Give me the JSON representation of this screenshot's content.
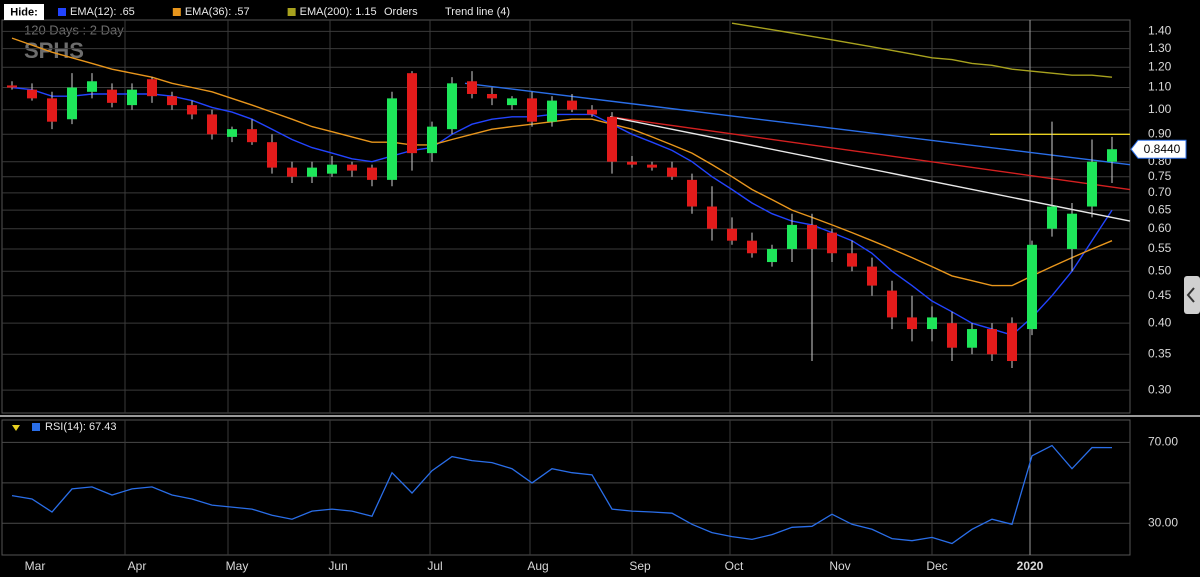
{
  "toolbar": {
    "hide": "Hide:",
    "orders": "Orders",
    "trend": "Trend line (4)"
  },
  "chart_data": [
    {
      "type": "candlestick",
      "symbol": "SPHS",
      "period": "120  Days : 2 Day",
      "log_scale": true,
      "grid": true,
      "xlim": [
        -0.5,
        55.9
      ],
      "xgrid": [
        5.65,
        10.8,
        15.9,
        20.9,
        25.9,
        31.0,
        35.9,
        41.0,
        46.0,
        50.9
      ],
      "ylim": [
        0.272,
        1.47
      ],
      "yticks": [
        {
          "value": 0.3,
          "label": "0.30"
        },
        {
          "value": 0.35,
          "label": "0.35"
        },
        {
          "value": 0.4,
          "label": "0.40"
        },
        {
          "value": 0.45,
          "label": "0.45"
        },
        {
          "value": 0.5,
          "label": "0.50"
        },
        {
          "value": 0.55,
          "label": "0.55"
        },
        {
          "value": 0.6,
          "label": "0.60"
        },
        {
          "value": 0.65,
          "label": "0.65"
        },
        {
          "value": 0.7,
          "label": "0.70"
        },
        {
          "value": 0.75,
          "label": "0.75"
        },
        {
          "value": 0.8,
          "label": "0.80"
        },
        {
          "value": 0.9,
          "label": "0.90"
        },
        {
          "value": 1.0,
          "label": "1.00"
        },
        {
          "value": 1.1,
          "label": "1.10"
        },
        {
          "value": 1.2,
          "label": "1.20"
        },
        {
          "value": 1.3,
          "label": "1.30"
        },
        {
          "value": 1.4,
          "label": "1.40"
        }
      ],
      "up_color": "#1ee65a",
      "down_color": "#e21b1b",
      "open": [
        1.11,
        1.09,
        1.05,
        0.96,
        1.08,
        1.09,
        1.02,
        1.14,
        1.06,
        1.02,
        0.98,
        0.89,
        0.92,
        0.87,
        0.78,
        0.75,
        0.76,
        0.79,
        0.78,
        0.74,
        1.17,
        0.83,
        0.92,
        1.13,
        1.07,
        1.02,
        1.05,
        0.95,
        1.04,
        1.0,
        0.97,
        0.8,
        0.79,
        0.78,
        0.74,
        0.66,
        0.6,
        0.57,
        0.52,
        0.55,
        0.61,
        0.59,
        0.54,
        0.51,
        0.46,
        0.41,
        0.39,
        0.4,
        0.36,
        0.39,
        0.4,
        0.39,
        0.6,
        0.55,
        0.66,
        0.8
      ],
      "high": [
        1.13,
        1.12,
        1.08,
        1.17,
        1.17,
        1.12,
        1.12,
        1.15,
        1.08,
        1.04,
        1.0,
        0.93,
        0.96,
        0.9,
        0.8,
        0.8,
        0.82,
        0.8,
        0.79,
        1.08,
        1.18,
        0.95,
        1.15,
        1.18,
        1.1,
        1.06,
        1.08,
        1.06,
        1.07,
        1.02,
        0.99,
        0.82,
        0.8,
        0.8,
        0.76,
        0.72,
        0.63,
        0.59,
        0.56,
        0.64,
        0.64,
        0.6,
        0.57,
        0.53,
        0.48,
        0.45,
        0.43,
        0.42,
        0.4,
        0.4,
        0.41,
        0.57,
        0.95,
        0.67,
        0.88,
        0.89
      ],
      "low": [
        1.09,
        1.04,
        0.92,
        0.94,
        1.05,
        1.01,
        1.0,
        1.03,
        1.0,
        0.96,
        0.88,
        0.87,
        0.86,
        0.76,
        0.73,
        0.73,
        0.75,
        0.75,
        0.72,
        0.72,
        0.77,
        0.8,
        0.9,
        1.05,
        1.02,
        1.0,
        0.93,
        0.93,
        0.99,
        0.97,
        0.76,
        0.78,
        0.77,
        0.74,
        0.64,
        0.57,
        0.56,
        0.53,
        0.51,
        0.52,
        0.34,
        0.52,
        0.5,
        0.45,
        0.39,
        0.37,
        0.37,
        0.34,
        0.35,
        0.34,
        0.33,
        0.38,
        0.58,
        0.5,
        0.63,
        0.73
      ],
      "close": [
        1.1,
        1.05,
        0.95,
        1.1,
        1.13,
        1.03,
        1.09,
        1.06,
        1.02,
        0.98,
        0.9,
        0.92,
        0.87,
        0.78,
        0.75,
        0.78,
        0.79,
        0.77,
        0.74,
        1.05,
        0.83,
        0.93,
        1.12,
        1.07,
        1.05,
        1.05,
        0.95,
        1.04,
        1.0,
        0.98,
        0.8,
        0.79,
        0.78,
        0.75,
        0.66,
        0.6,
        0.57,
        0.54,
        0.55,
        0.61,
        0.55,
        0.54,
        0.51,
        0.47,
        0.41,
        0.39,
        0.41,
        0.36,
        0.39,
        0.35,
        0.34,
        0.56,
        0.66,
        0.64,
        0.8,
        0.844
      ],
      "last_label": "0.8440",
      "series": [
        {
          "name": "EMA(12): .65",
          "color": "#2244ff",
          "values": [
            1.1,
            1.09,
            1.06,
            1.06,
            1.07,
            1.07,
            1.07,
            1.07,
            1.06,
            1.04,
            1.01,
            0.99,
            0.96,
            0.92,
            0.88,
            0.85,
            0.83,
            0.81,
            0.8,
            0.82,
            0.84,
            0.85,
            0.9,
            0.94,
            0.96,
            0.97,
            0.97,
            0.98,
            0.98,
            0.98,
            0.94,
            0.9,
            0.87,
            0.84,
            0.8,
            0.75,
            0.71,
            0.67,
            0.64,
            0.62,
            0.61,
            0.59,
            0.57,
            0.54,
            0.5,
            0.47,
            0.44,
            0.42,
            0.4,
            0.39,
            0.38,
            0.41,
            0.45,
            0.5,
            0.57,
            0.65
          ]
        },
        {
          "name": "EMA(36): .57",
          "color": "#e8961c",
          "values": [
            1.36,
            1.32,
            1.28,
            1.25,
            1.22,
            1.19,
            1.17,
            1.15,
            1.12,
            1.1,
            1.08,
            1.05,
            1.02,
            0.99,
            0.96,
            0.93,
            0.91,
            0.89,
            0.87,
            0.87,
            0.86,
            0.86,
            0.88,
            0.9,
            0.92,
            0.93,
            0.94,
            0.95,
            0.96,
            0.96,
            0.94,
            0.92,
            0.89,
            0.86,
            0.83,
            0.79,
            0.75,
            0.71,
            0.68,
            0.65,
            0.63,
            0.61,
            0.59,
            0.57,
            0.55,
            0.53,
            0.51,
            0.49,
            0.48,
            0.47,
            0.47,
            0.49,
            0.51,
            0.53,
            0.55,
            0.57
          ]
        },
        {
          "name": "EMA(200): 1.15",
          "color": "#a8a21e",
          "values": [
            null,
            null,
            null,
            null,
            null,
            null,
            null,
            null,
            null,
            null,
            null,
            null,
            null,
            null,
            null,
            null,
            null,
            null,
            null,
            null,
            null,
            null,
            null,
            null,
            null,
            null,
            null,
            null,
            null,
            null,
            null,
            null,
            null,
            null,
            null,
            null,
            1.45,
            1.43,
            1.41,
            1.39,
            1.37,
            1.35,
            1.33,
            1.31,
            1.29,
            1.27,
            1.25,
            1.24,
            1.22,
            1.21,
            1.19,
            1.18,
            1.17,
            1.16,
            1.16,
            1.15
          ]
        }
      ],
      "trend_lines": [
        {
          "color": "#2a6ee8",
          "x": [
            22.65,
            55.9
          ],
          "y": [
            1.12,
            0.79
          ]
        },
        {
          "color": "#d42020",
          "x": [
            29.9,
            55.9
          ],
          "y": [
            0.97,
            0.71
          ]
        },
        {
          "color": "#e8e8e8",
          "x": [
            29.9,
            55.9
          ],
          "y": [
            0.97,
            0.62
          ]
        },
        {
          "color": "#e8d020",
          "x": [
            48.9,
            55.9
          ],
          "y": [
            0.9,
            0.9
          ]
        }
      ]
    },
    {
      "type": "line",
      "grid": true,
      "xlim": [
        -0.5,
        55.9
      ],
      "xticks": [
        {
          "value": 1.15,
          "label": "Mar"
        },
        {
          "value": 6.25,
          "label": "Apr"
        },
        {
          "value": 11.25,
          "label": "May"
        },
        {
          "value": 16.3,
          "label": "Jun"
        },
        {
          "value": 21.15,
          "label": "Jul"
        },
        {
          "value": 26.3,
          "label": "Aug"
        },
        {
          "value": 31.4,
          "label": "Sep"
        },
        {
          "value": 36.1,
          "label": "Oct"
        },
        {
          "value": 41.4,
          "label": "Nov"
        },
        {
          "value": 46.25,
          "label": "Dec"
        },
        {
          "value": 50.9,
          "label": "2020"
        }
      ],
      "ylim": [
        14.3,
        81.1
      ],
      "yticks": [
        {
          "value": 70,
          "label": "70.00"
        },
        {
          "value": 30,
          "label": "30.00"
        }
      ],
      "grid_lines": [
        50
      ],
      "series": [
        {
          "name": "RSI(14): 67.43",
          "color": "#2a6ee8",
          "values": [
            43.7,
            42,
            35.6,
            47,
            48,
            44,
            47,
            48,
            44,
            42,
            39,
            38,
            37,
            34,
            32,
            36,
            37,
            36,
            33.5,
            55,
            45,
            56,
            63,
            61,
            60,
            57,
            50,
            57,
            55,
            54,
            37,
            36,
            35.6,
            35,
            29.5,
            25.4,
            23.4,
            22,
            24.4,
            28,
            28.5,
            34.5,
            29.5,
            27,
            22.4,
            21.4,
            23,
            20,
            27,
            32,
            29.5,
            63.4,
            68.5,
            57,
            67.5,
            67.43
          ]
        }
      ]
    }
  ]
}
